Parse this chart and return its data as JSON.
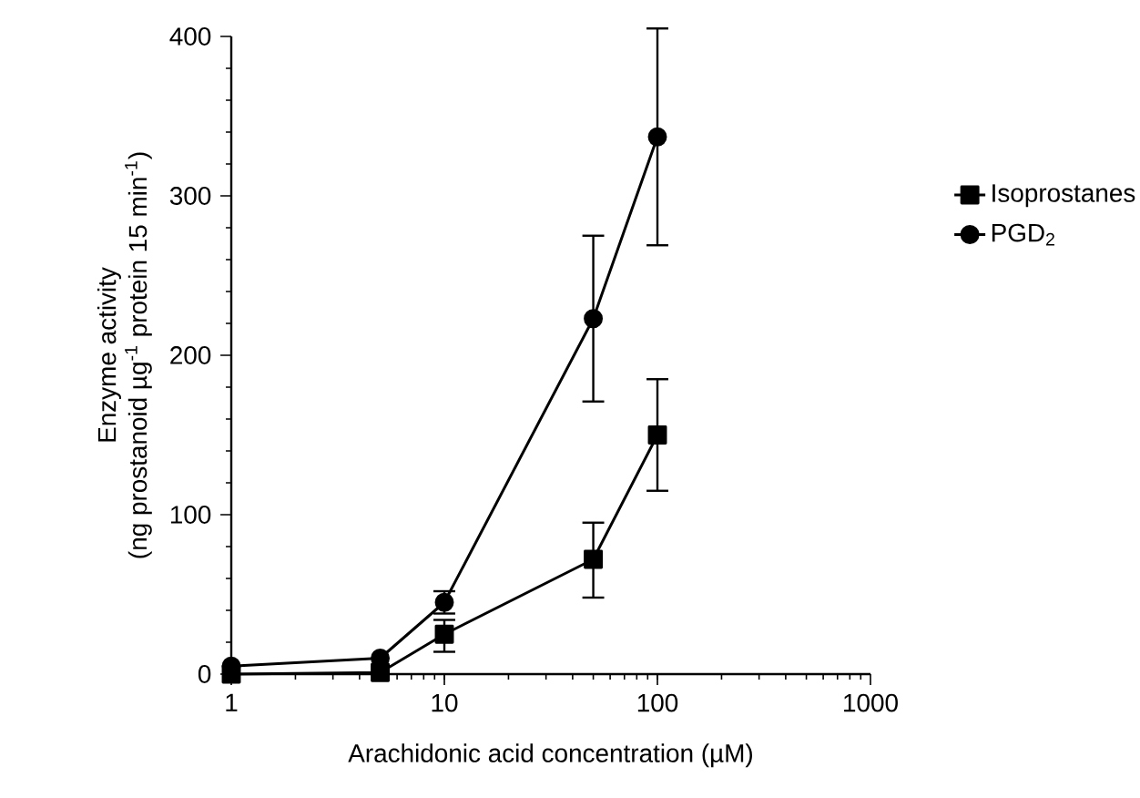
{
  "chart_data": {
    "type": "line",
    "xlabel": "Arachidonic acid concentration (µM)",
    "ylabel": [
      "Enzyme activity",
      "(ng prostanoid µg$^{-1}$ protein 15 min$^{-1}$)"
    ],
    "x": [
      1,
      5,
      10,
      50,
      100
    ],
    "series": [
      {
        "name": "Isoprostanes",
        "color": "#000000",
        "marker": "square",
        "values": [
          0,
          1,
          25,
          72,
          150
        ],
        "errors": [
          null,
          null,
          [
            14,
            34
          ],
          [
            48,
            95
          ],
          [
            115,
            185
          ]
        ]
      },
      {
        "name": "PGD$_{2}$",
        "color": "#000000",
        "marker": "circle",
        "values": [
          5,
          10,
          45,
          223,
          337
        ],
        "errors": [
          null,
          null,
          [
            38,
            52
          ],
          [
            171,
            275
          ],
          [
            269,
            405
          ]
        ]
      }
    ],
    "log": "x",
    "xlim": [
      1,
      1000
    ],
    "xticks": [
      1,
      10,
      100,
      1000
    ],
    "ylim": [
      0,
      400
    ],
    "yticks": [
      0,
      100,
      200,
      300,
      400
    ],
    "legend": "right",
    "grid": false,
    "line_style": "solid"
  }
}
